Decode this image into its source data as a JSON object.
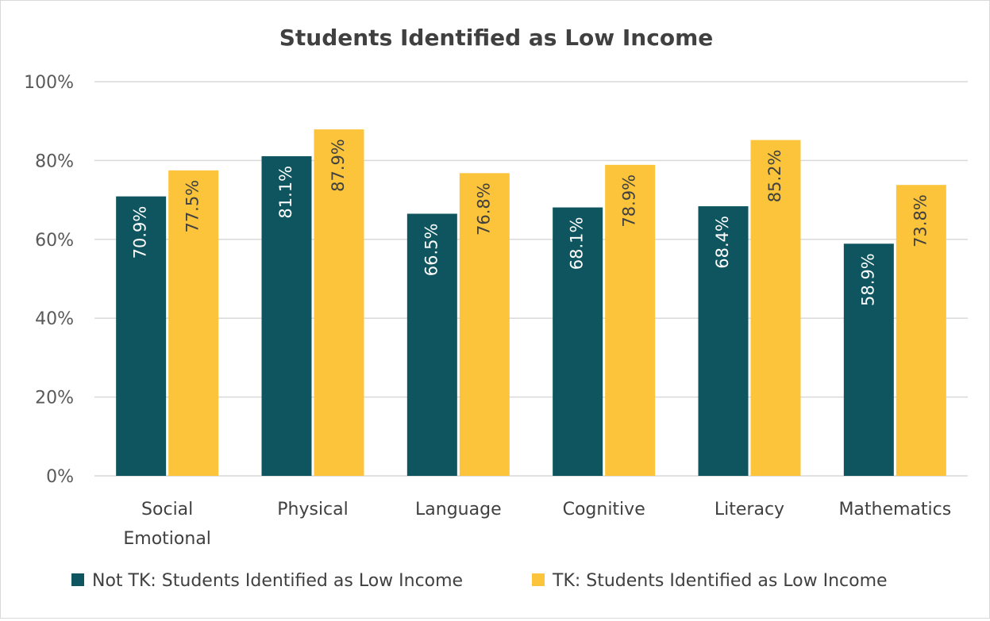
{
  "chart_data": {
    "type": "bar",
    "title": "Students Identified as Low Income",
    "categories": [
      "Social\nEmotional",
      "Physical",
      "Language",
      "Cognitive",
      "Literacy",
      "Mathematics"
    ],
    "series": [
      {
        "name": "Not TK: Students Identified as Low Income",
        "color": "#0f5560",
        "label_color": "#ffffff",
        "values": [
          70.9,
          81.1,
          66.5,
          68.1,
          68.4,
          58.9
        ],
        "labels": [
          "70.9%",
          "81.1%",
          "66.5%",
          "68.1%",
          "68.4%",
          "58.9%"
        ]
      },
      {
        "name": "TK: Students Identified as Low Income",
        "color": "#fbc43a",
        "label_color": "#404040",
        "values": [
          77.5,
          87.9,
          76.8,
          78.9,
          85.2,
          73.8
        ],
        "labels": [
          "77.5%",
          "87.9%",
          "76.8%",
          "78.9%",
          "85.2%",
          "73.8%"
        ]
      }
    ],
    "yticks": [
      "0%",
      "20%",
      "40%",
      "60%",
      "80%",
      "100%"
    ],
    "ylim": [
      0,
      100
    ],
    "grid": true,
    "legend_position": "bottom",
    "xlabel": "",
    "ylabel": ""
  }
}
